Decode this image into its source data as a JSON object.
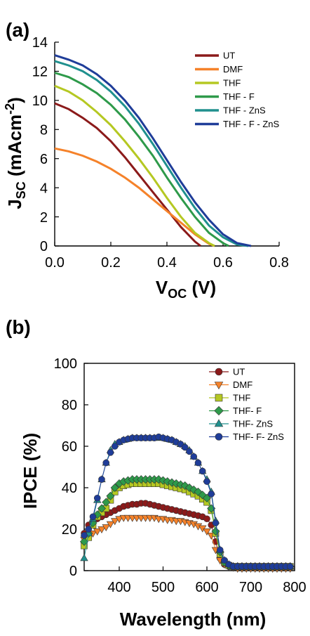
{
  "chart_data": [
    {
      "panel_label": "(a)",
      "type": "line",
      "xlabel": {
        "main": "V",
        "sub": "OC",
        "rest": " (V)"
      },
      "ylabel": {
        "main": "J",
        "sub": "SC",
        "mid": " (mAcm",
        "sup": "-2",
        "end": ")"
      },
      "xlim": [
        0.0,
        0.8
      ],
      "ylim": [
        0,
        14
      ],
      "xticks": [
        "0.0",
        "0.2",
        "0.4",
        "0.6",
        "0.8"
      ],
      "yticks": [
        "0",
        "2",
        "4",
        "6",
        "8",
        "10",
        "12",
        "14"
      ],
      "grid": false,
      "legend_position": "top-right",
      "series": [
        {
          "name": "UT",
          "color": "#8b1a1a",
          "x": [
            0,
            0.05,
            0.1,
            0.15,
            0.2,
            0.25,
            0.3,
            0.35,
            0.4,
            0.45,
            0.5,
            0.52
          ],
          "y": [
            9.8,
            9.4,
            8.8,
            8.1,
            7.2,
            6.1,
            4.9,
            3.7,
            2.5,
            1.3,
            0.3,
            0
          ]
        },
        {
          "name": "DMF",
          "color": "#f5822a",
          "x": [
            0,
            0.05,
            0.1,
            0.15,
            0.2,
            0.25,
            0.3,
            0.35,
            0.4,
            0.45,
            0.5,
            0.55,
            0.57
          ],
          "y": [
            6.7,
            6.5,
            6.2,
            5.8,
            5.3,
            4.7,
            4.0,
            3.2,
            2.4,
            1.6,
            0.8,
            0.15,
            0
          ]
        },
        {
          "name": "THF",
          "color": "#b5c822",
          "x": [
            0,
            0.05,
            0.1,
            0.15,
            0.2,
            0.25,
            0.3,
            0.35,
            0.4,
            0.45,
            0.5,
            0.55,
            0.57
          ],
          "y": [
            11.0,
            10.6,
            10.0,
            9.2,
            8.3,
            7.2,
            6.0,
            4.7,
            3.3,
            2.0,
            0.9,
            0.2,
            0
          ]
        },
        {
          "name": "THF - F",
          "color": "#2e9a4a",
          "x": [
            0,
            0.05,
            0.1,
            0.15,
            0.2,
            0.25,
            0.3,
            0.35,
            0.4,
            0.45,
            0.5,
            0.55,
            0.6,
            0.62
          ],
          "y": [
            11.9,
            11.6,
            11.1,
            10.5,
            9.7,
            8.7,
            7.5,
            6.2,
            4.7,
            3.3,
            2.0,
            0.9,
            0.2,
            0
          ]
        },
        {
          "name": "THF - ZnS",
          "color": "#20908e",
          "x": [
            0,
            0.05,
            0.1,
            0.15,
            0.2,
            0.25,
            0.3,
            0.35,
            0.4,
            0.45,
            0.5,
            0.55,
            0.6,
            0.65,
            0.69
          ],
          "y": [
            12.7,
            12.4,
            12.0,
            11.4,
            10.6,
            9.6,
            8.4,
            7.0,
            5.5,
            4.0,
            2.6,
            1.4,
            0.6,
            0.1,
            0
          ]
        },
        {
          "name": "THF - F - ZnS",
          "color": "#1f3d99",
          "x": [
            0,
            0.05,
            0.1,
            0.15,
            0.2,
            0.25,
            0.3,
            0.35,
            0.4,
            0.45,
            0.5,
            0.55,
            0.6,
            0.65,
            0.7
          ],
          "y": [
            13.1,
            12.8,
            12.4,
            11.8,
            11.0,
            10.0,
            8.8,
            7.4,
            5.9,
            4.4,
            3.0,
            1.8,
            0.8,
            0.2,
            0
          ]
        }
      ]
    },
    {
      "panel_label": "(b)",
      "type": "line",
      "xlabel": "Wavelength (nm)",
      "ylabel": "IPCE (%)",
      "xlim": [
        320,
        800
      ],
      "ylim": [
        0,
        100
      ],
      "xticks": [
        "400",
        "500",
        "600",
        "700",
        "800"
      ],
      "yticks": [
        "0",
        "20",
        "40",
        "60",
        "80",
        "100"
      ],
      "grid": false,
      "legend_position": "top-right",
      "series": [
        {
          "name": "UT",
          "color": "#8b1a1a",
          "marker": "circle",
          "x": [
            320,
            330,
            340,
            350,
            360,
            370,
            380,
            390,
            400,
            410,
            420,
            430,
            440,
            450,
            460,
            470,
            480,
            490,
            500,
            510,
            520,
            530,
            540,
            550,
            560,
            570,
            580,
            590,
            600,
            610,
            620,
            630,
            640,
            650,
            660,
            670,
            680,
            690,
            700,
            710,
            720,
            730,
            740,
            750,
            760,
            770,
            780,
            790
          ],
          "y": [
            18,
            22,
            24,
            25,
            26,
            27,
            28,
            29,
            30,
            31,
            31.5,
            32,
            32,
            32.5,
            32.5,
            32,
            31.5,
            31,
            30.5,
            30,
            29.5,
            29,
            28.5,
            28,
            27.5,
            27,
            26.5,
            26,
            25,
            22,
            14,
            6,
            3,
            2,
            1.5,
            1.5,
            1.5,
            1.5,
            1.5,
            1.5,
            1.5,
            1.5,
            1.5,
            1.5,
            1.5,
            1.5,
            1.5,
            1.5
          ]
        },
        {
          "name": "DMF",
          "color": "#f5822a",
          "marker": "triangle-down",
          "x": [
            320,
            330,
            340,
            350,
            360,
            370,
            380,
            390,
            400,
            410,
            420,
            430,
            440,
            450,
            460,
            470,
            480,
            490,
            500,
            510,
            520,
            530,
            540,
            550,
            560,
            570,
            580,
            590,
            600,
            610,
            620,
            630,
            640,
            650,
            660,
            670,
            680,
            690,
            700,
            710,
            720,
            730,
            740,
            750,
            760,
            770,
            780,
            790
          ],
          "y": [
            15,
            17,
            18,
            19,
            20,
            21,
            22.5,
            24,
            25,
            25.5,
            25.5,
            25.5,
            25.5,
            25.5,
            25.5,
            25.5,
            25.5,
            25,
            25,
            24.5,
            24.5,
            24,
            24,
            23.5,
            23,
            22.5,
            21.5,
            20.5,
            19,
            17,
            10,
            5,
            3,
            2,
            1.5,
            1,
            1,
            1,
            1,
            1,
            1,
            1,
            1,
            1,
            1,
            1,
            1,
            1
          ]
        },
        {
          "name": "THF",
          "color": "#b5c822",
          "marker": "square",
          "x": [
            320,
            330,
            340,
            350,
            360,
            370,
            380,
            390,
            400,
            410,
            420,
            430,
            440,
            450,
            460,
            470,
            480,
            490,
            500,
            510,
            520,
            530,
            540,
            550,
            560,
            570,
            580,
            590,
            600,
            610,
            620,
            630,
            640,
            650,
            660,
            670,
            680,
            690,
            700,
            710,
            720,
            730,
            740,
            750,
            760,
            770,
            780,
            790
          ],
          "y": [
            12,
            16,
            22,
            26,
            28,
            30,
            34,
            38,
            40,
            41,
            41.5,
            42,
            42,
            42,
            42,
            42,
            42,
            42,
            41.5,
            41,
            40.5,
            40,
            39.5,
            39,
            38,
            37,
            36,
            34.5,
            33,
            29,
            18,
            8,
            4,
            2.5,
            2,
            2,
            2,
            2,
            2,
            2,
            2,
            2,
            2,
            2,
            2,
            2,
            2,
            2
          ]
        },
        {
          "name": "THF- F",
          "color": "#2e9a4a",
          "marker": "diamond",
          "x": [
            320,
            330,
            340,
            350,
            360,
            370,
            380,
            390,
            400,
            410,
            420,
            430,
            440,
            450,
            460,
            470,
            480,
            490,
            500,
            510,
            520,
            530,
            540,
            550,
            560,
            570,
            580,
            590,
            600,
            610,
            620,
            630,
            640,
            650,
            660,
            670,
            680,
            690,
            700,
            710,
            720,
            730,
            740,
            750,
            760,
            770,
            780,
            790
          ],
          "y": [
            14,
            18,
            23,
            27,
            30,
            33,
            36,
            40,
            42,
            43,
            43.5,
            44,
            44,
            44,
            44,
            44,
            44,
            44,
            43.5,
            43,
            42.5,
            42,
            41.5,
            41,
            40,
            39,
            38,
            36.5,
            35,
            30,
            19,
            9,
            4,
            2.5,
            2,
            2,
            2,
            2,
            2,
            2,
            2,
            2,
            2,
            2,
            2,
            2,
            2,
            2
          ]
        },
        {
          "name": "THF- ZnS",
          "color": "#20908e",
          "marker": "triangle-up",
          "x": [
            320,
            330,
            340,
            350,
            360,
            370,
            380,
            390,
            400,
            410,
            420,
            430,
            440,
            450,
            460,
            470,
            480,
            490,
            500,
            510,
            520,
            530,
            540,
            550,
            560,
            570,
            580,
            590,
            600,
            610,
            620,
            630,
            640,
            650,
            660,
            670,
            680,
            690,
            700,
            710,
            720,
            730,
            740,
            750,
            760,
            770,
            780,
            790
          ],
          "y": [
            6,
            18,
            25,
            34,
            44,
            52,
            58,
            61,
            62,
            63,
            63.5,
            64,
            64,
            64,
            64,
            64,
            64,
            64,
            64,
            63.5,
            63,
            62,
            61,
            60,
            58,
            55,
            52,
            48,
            44,
            38,
            24,
            10,
            5,
            3,
            2,
            2,
            2,
            2,
            2,
            2,
            2,
            2,
            2,
            2,
            2,
            2,
            2,
            2
          ]
        },
        {
          "name": "THF- F- ZnS",
          "color": "#1f3d99",
          "marker": "circle",
          "x": [
            320,
            330,
            340,
            350,
            360,
            370,
            380,
            390,
            400,
            410,
            420,
            430,
            440,
            450,
            460,
            470,
            480,
            490,
            500,
            510,
            520,
            530,
            540,
            550,
            560,
            570,
            580,
            590,
            600,
            610,
            620,
            630,
            640,
            650,
            660,
            670,
            680,
            690,
            700,
            710,
            720,
            730,
            740,
            750,
            760,
            770,
            780,
            790
          ],
          "y": [
            17,
            20,
            26,
            35,
            44,
            52,
            57,
            60,
            62,
            63,
            63.5,
            64,
            64,
            64,
            64,
            64,
            64,
            64.5,
            64,
            63.5,
            63,
            62,
            61,
            59.5,
            57.5,
            55,
            52,
            48,
            43,
            37,
            23,
            10,
            5,
            3,
            2,
            2,
            2,
            2,
            2,
            2,
            2,
            2,
            2,
            2,
            2,
            2,
            2,
            2
          ]
        }
      ]
    }
  ]
}
